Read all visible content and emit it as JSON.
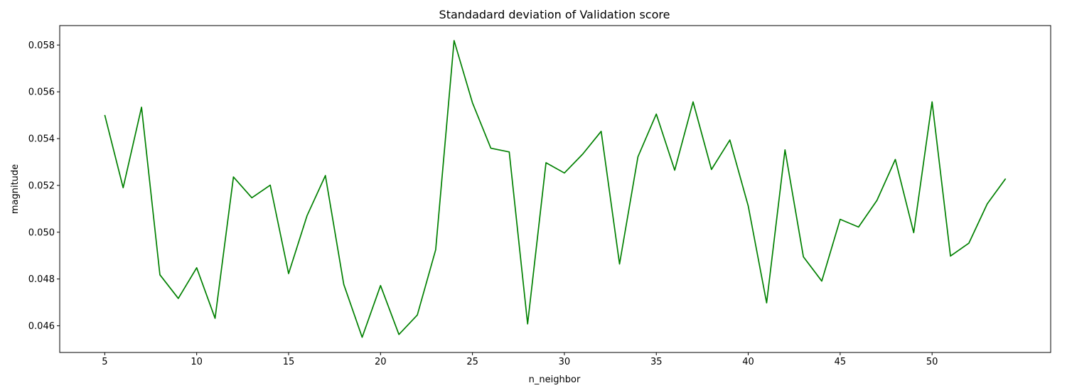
{
  "chart_data": {
    "type": "line",
    "title": "Standadard deviation of Validation score",
    "xlabel": "n_neighbor",
    "ylabel": "magnitude",
    "xlim": [
      2.55,
      56.45
    ],
    "ylim": [
      0.04486,
      0.05883
    ],
    "xticks": [
      5,
      10,
      15,
      20,
      25,
      30,
      35,
      40,
      45,
      50
    ],
    "yticks": [
      0.046,
      0.048,
      0.05,
      0.052,
      0.054,
      0.056,
      0.058
    ],
    "ytick_labels": [
      "0.046",
      "0.048",
      "0.050",
      "0.052",
      "0.054",
      "0.056",
      "0.058"
    ],
    "grid": false,
    "series": [
      {
        "color": "#008000",
        "x": [
          5,
          6,
          7,
          8,
          9,
          10,
          11,
          12,
          13,
          14,
          15,
          16,
          17,
          18,
          19,
          20,
          21,
          22,
          23,
          24,
          25,
          26,
          27,
          28,
          29,
          30,
          31,
          32,
          33,
          34,
          35,
          36,
          37,
          38,
          39,
          40,
          41,
          42,
          43,
          44,
          45,
          46,
          47,
          48,
          49,
          50,
          51,
          52,
          53,
          54
        ],
        "y": [
          0.05501,
          0.0519,
          0.05534,
          0.04818,
          0.04717,
          0.04848,
          0.04632,
          0.05236,
          0.05147,
          0.05201,
          0.04823,
          0.0507,
          0.05242,
          0.04777,
          0.04551,
          0.04772,
          0.04563,
          0.04646,
          0.04925,
          0.05819,
          0.05553,
          0.05359,
          0.05343,
          0.04608,
          0.05297,
          0.05253,
          0.05334,
          0.05431,
          0.04864,
          0.05322,
          0.05505,
          0.05265,
          0.05557,
          0.05268,
          0.05394,
          0.05112,
          0.04698,
          0.05352,
          0.04895,
          0.04791,
          0.05055,
          0.05022,
          0.05136,
          0.05311,
          0.04998,
          0.05557,
          0.04898,
          0.04953,
          0.05121,
          0.05229
        ]
      }
    ]
  }
}
